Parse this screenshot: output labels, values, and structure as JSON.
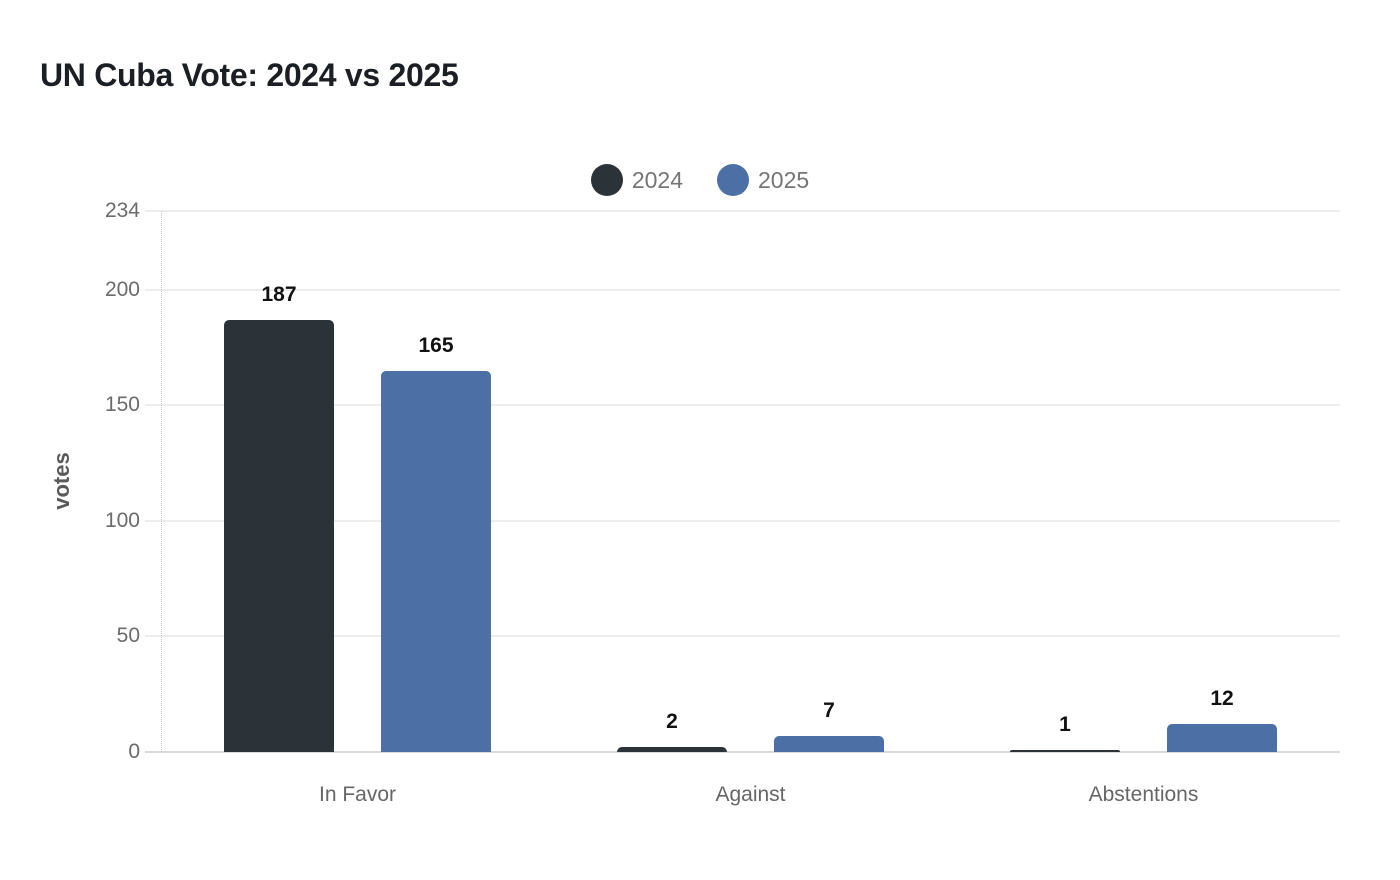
{
  "chart_data": {
    "type": "bar",
    "title": "UN Cuba Vote: 2024 vs 2025",
    "categories": [
      "In Favor",
      "Against",
      "Abstentions"
    ],
    "series": [
      {
        "name": "2024",
        "color": "#2b3338",
        "values": [
          187,
          2,
          1
        ]
      },
      {
        "name": "2025",
        "color": "#4c70a5",
        "values": [
          165,
          7,
          12
        ]
      }
    ],
    "xlabel": "",
    "ylabel": "votes",
    "ylim": [
      0,
      234
    ],
    "yticks": [
      0,
      50,
      100,
      150,
      200,
      234
    ],
    "grid": true,
    "legend_position": "top-center",
    "value_labels": true,
    "colors": {
      "background": "#ffffff",
      "title_text": "#1b1e23",
      "legend_text": "#757575",
      "tick_text": "#6b6b6b",
      "category_text": "#666666",
      "value_label_text": "#111111",
      "axis_label_text": "#595959",
      "gridline": "#ededed",
      "baseline": "#d9d9d9"
    }
  }
}
